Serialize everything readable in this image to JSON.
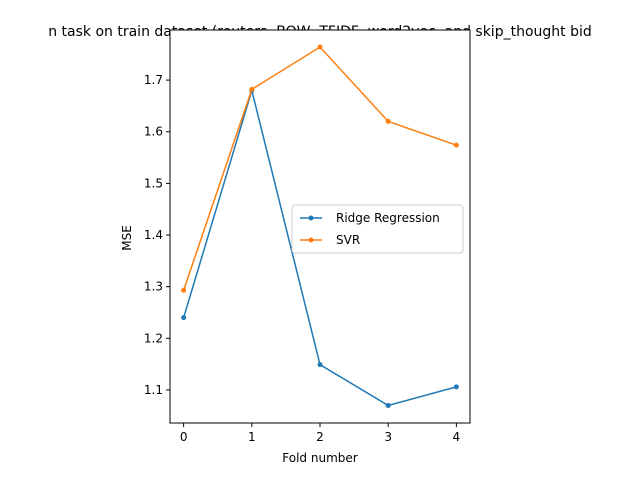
{
  "chart_data": {
    "type": "line",
    "title": "n task on train dataset (reuters, BOW, TFIDF, word2vec, and skip_thought bid",
    "xlabel": "Fold number",
    "ylabel": "MSE",
    "x": [
      0,
      1,
      2,
      3,
      4
    ],
    "xticks": [
      "0",
      "1",
      "2",
      "3",
      "4"
    ],
    "yticks": [
      "1.1",
      "1.2",
      "1.3",
      "1.4",
      "1.5",
      "1.6",
      "1.7"
    ],
    "xlim": [
      -0.2,
      4.2
    ],
    "ylim": [
      1.036,
      1.797
    ],
    "grid": false,
    "legend_position": "center-right",
    "series": [
      {
        "name": "Ridge Regression",
        "color": "#1f77b4",
        "values": [
          1.24,
          1.68,
          1.149,
          1.07,
          1.106
        ]
      },
      {
        "name": "SVR",
        "color": "#ff7f0e",
        "values": [
          1.293,
          1.682,
          1.764,
          1.62,
          1.574
        ]
      }
    ]
  }
}
